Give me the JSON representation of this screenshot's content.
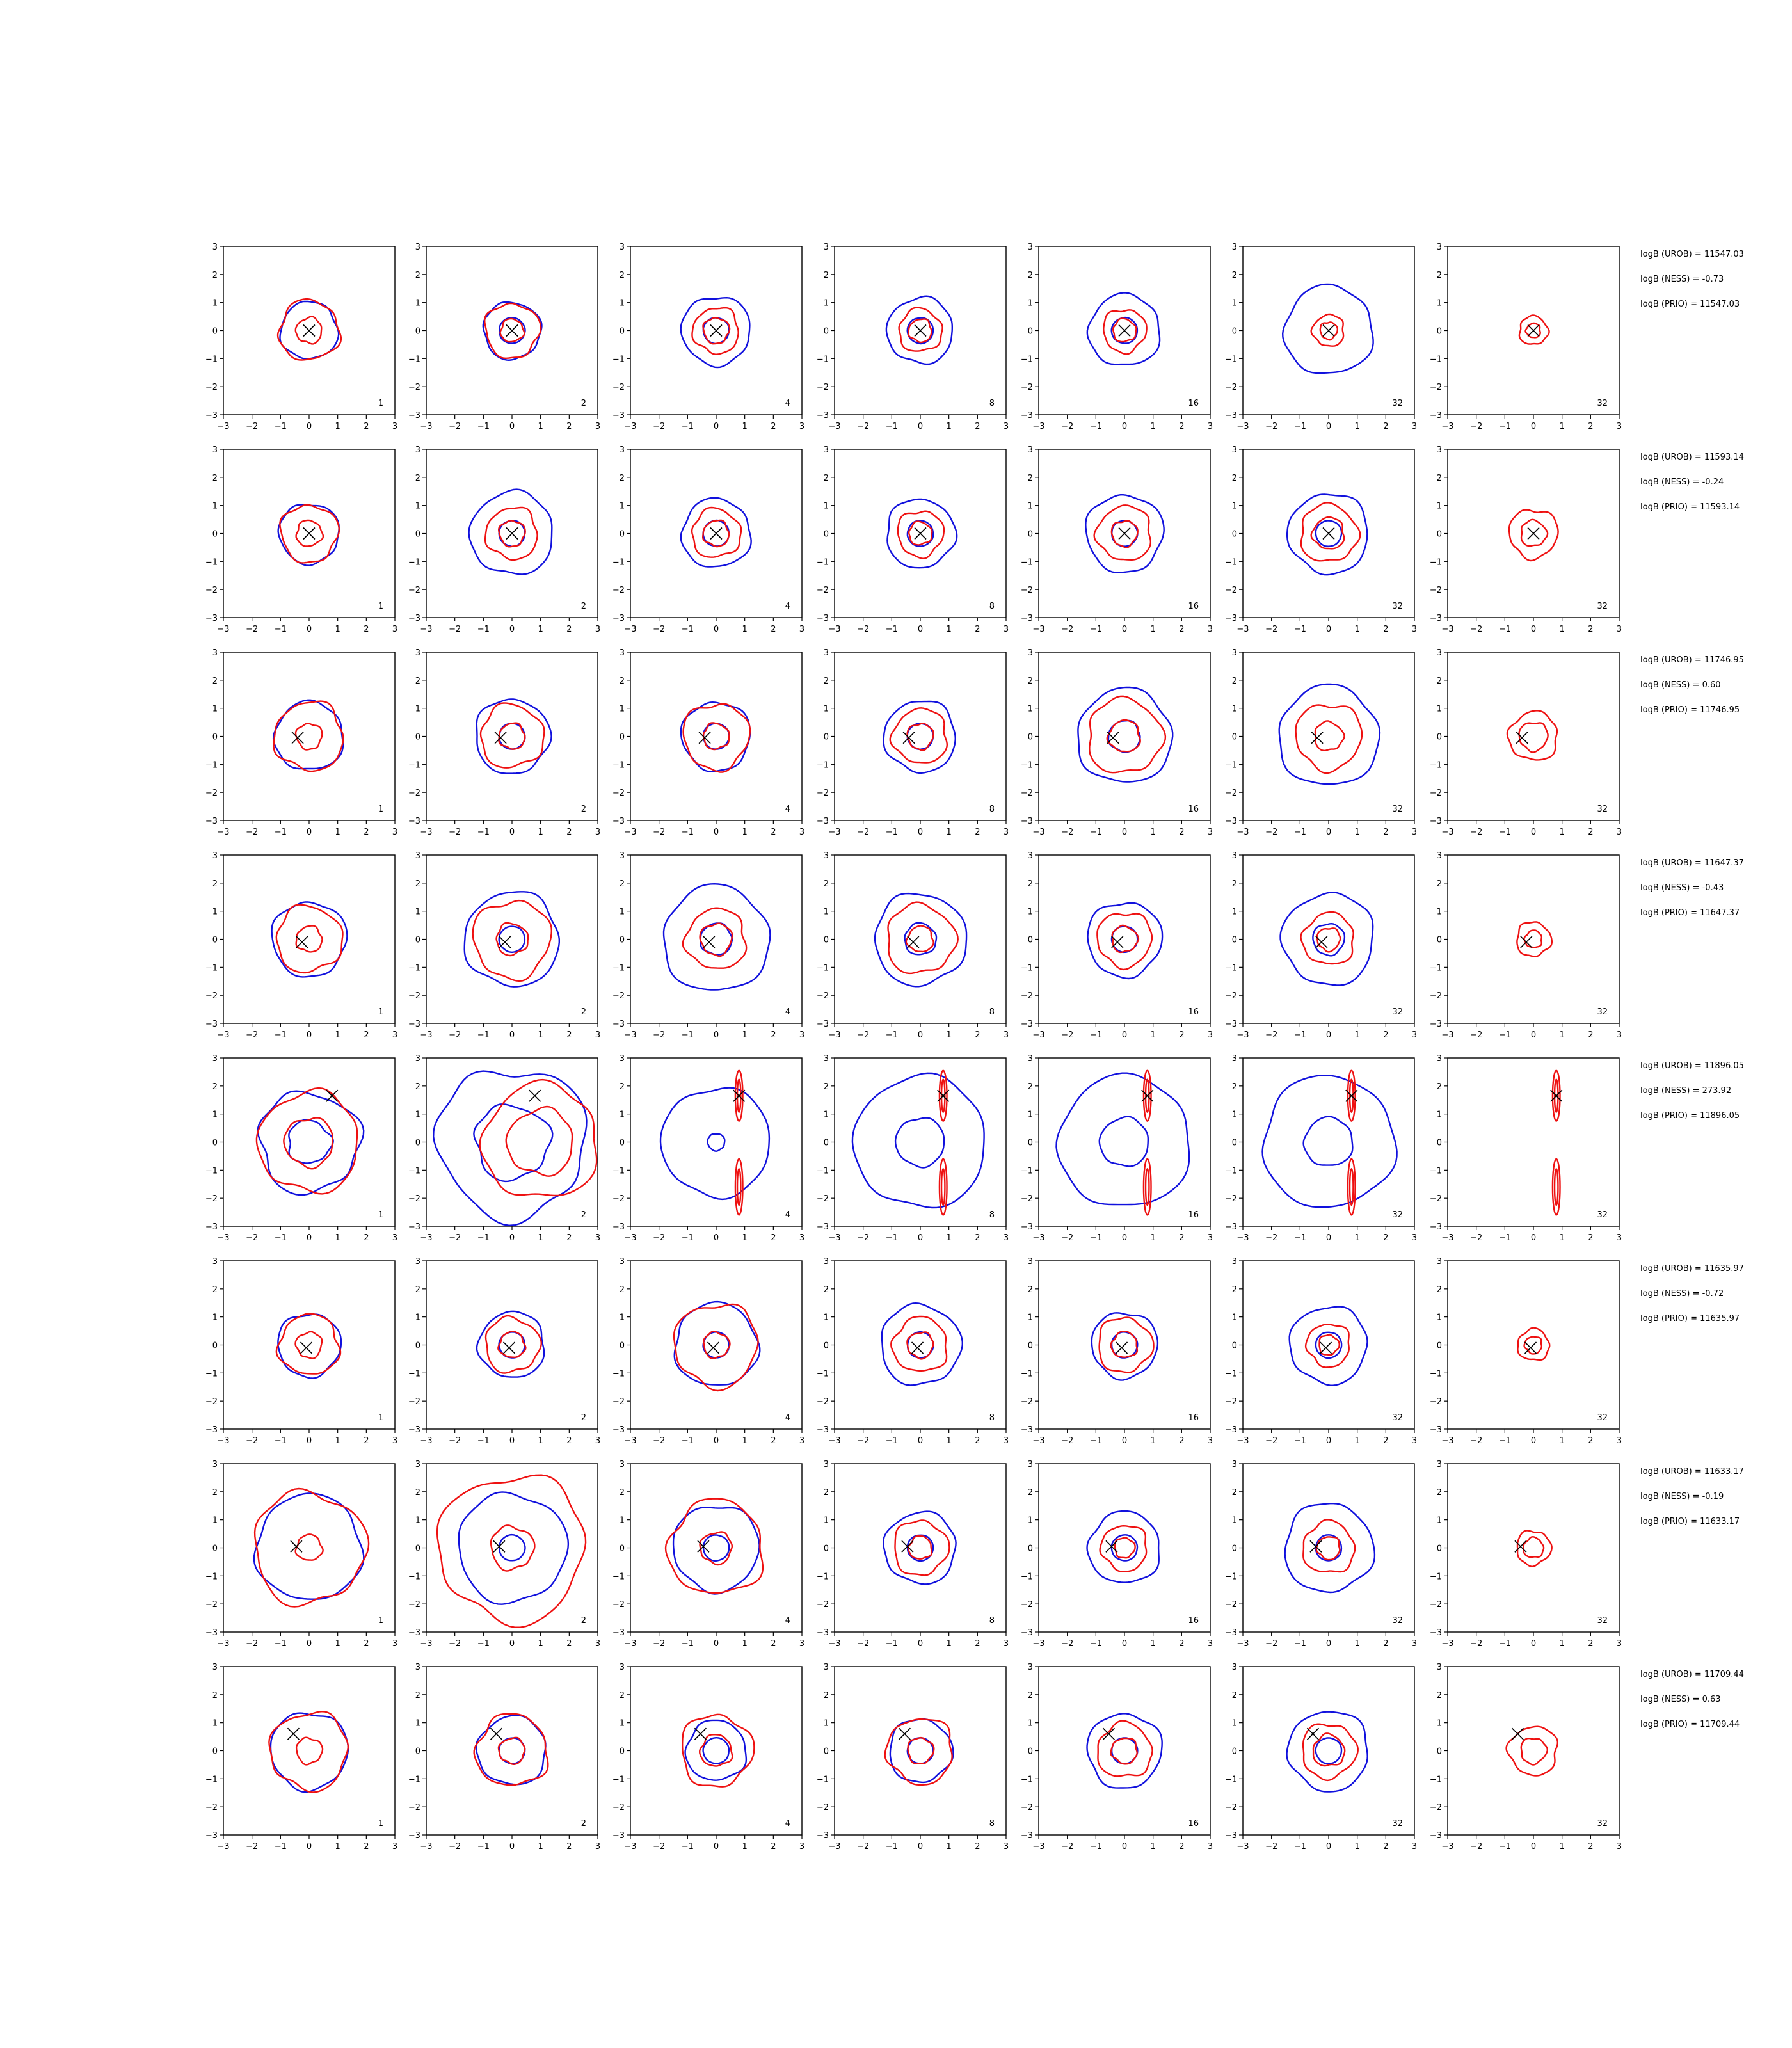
{
  "colors": {
    "red": "#ee1111",
    "blue": "#1111dd",
    "marker": "#000000"
  },
  "chart_data": {
    "type": "contour_grid",
    "rows": 8,
    "cols": 7,
    "xlim": [
      -3,
      3
    ],
    "ylim": [
      -3,
      3
    ],
    "ticks": [
      "−3",
      "−2",
      "−1",
      "0",
      "1",
      "2",
      "3"
    ],
    "panel_labels": [
      "1",
      "2",
      "4",
      "8",
      "16",
      "32",
      "32"
    ],
    "rows_data": [
      {
        "marker": [
          0.0,
          0.0
        ],
        "annotations": [
          "logB (UROB) = 11547.03",
          "logB (NESS) = -0.73",
          "logB (PRIO) = 11547.03"
        ],
        "red": [
          [
            [
              0.45
            ],
            [
              1.05
            ]
          ],
          [
            [
              0.4
            ],
            [
              0.95
            ]
          ],
          [
            [
              0.45
            ],
            [
              0.8
            ]
          ],
          [
            [
              0.4
            ],
            [
              0.75
            ]
          ],
          [
            [
              0.4
            ],
            [
              0.75
            ]
          ],
          [
            [
              0.3
            ],
            [
              0.55
            ]
          ],
          [
            [
              0.25
            ],
            [
              0.5
            ]
          ]
        ],
        "blue": [
          [
            [
              1.0
            ]
          ],
          [
            [
              0.45
            ],
            [
              1.0
            ]
          ],
          [
            [
              0.45
            ],
            [
              1.2
            ]
          ],
          [
            [
              0.45
            ],
            [
              1.15
            ]
          ],
          [
            [
              0.45
            ],
            [
              1.25
            ]
          ],
          [
            [
              1.55
            ]
          ],
          []
        ]
      },
      {
        "marker": [
          0.0,
          0.0
        ],
        "annotations": [
          "logB (UROB) = 11593.14",
          "logB (NESS) = -0.24",
          "logB (PRIO) = 11593.14"
        ],
        "red": [
          [
            [
              0.45
            ],
            [
              1.0
            ]
          ],
          [
            [
              0.45
            ],
            [
              0.9
            ]
          ],
          [
            [
              0.45
            ],
            [
              0.85
            ]
          ],
          [
            [
              0.4
            ],
            [
              0.8
            ]
          ],
          [
            [
              0.45
            ],
            [
              0.95
            ]
          ],
          [
            [
              0.55
            ],
            [
              1.0
            ]
          ],
          [
            [
              0.45
            ],
            [
              0.85
            ]
          ]
        ],
        "blue": [
          [
            [
              1.05
            ]
          ],
          [
            [
              0.45
            ],
            [
              1.45
            ]
          ],
          [
            [
              0.45
            ],
            [
              1.2
            ]
          ],
          [
            [
              0.45
            ],
            [
              1.2
            ]
          ],
          [
            [
              0.45
            ],
            [
              1.35
            ]
          ],
          [
            [
              0.45
            ],
            [
              1.4
            ]
          ],
          []
        ]
      },
      {
        "marker": [
          -0.4,
          -0.05
        ],
        "annotations": [
          "logB (UROB) = 11746.95",
          "logB (NESS) = 0.60",
          "logB (PRIO) = 11746.95"
        ],
        "red": [
          [
            [
              0.45
            ],
            [
              1.2
            ]
          ],
          [
            [
              0.45
            ],
            [
              1.1
            ]
          ],
          [
            [
              0.45
            ],
            [
              1.15
            ]
          ],
          [
            [
              0.45
            ],
            [
              0.95
            ]
          ],
          [
            [
              0.55
            ],
            [
              1.3
            ]
          ],
          [
            [
              0.5
            ],
            [
              1.15
            ]
          ],
          [
            [
              0.5
            ],
            [
              0.85
            ]
          ]
        ],
        "blue": [
          [
            [
              1.2
            ]
          ],
          [
            [
              0.45
            ],
            [
              1.3
            ]
          ],
          [
            [
              0.45
            ],
            [
              1.2
            ]
          ],
          [
            [
              0.45
            ],
            [
              1.25
            ]
          ],
          [
            [
              0.55
            ],
            [
              1.65
            ]
          ],
          [
            [
              1.75
            ]
          ],
          []
        ]
      },
      {
        "marker": [
          -0.25,
          -0.1
        ],
        "annotations": [
          "logB (UROB) = 11647.37",
          "logB (NESS) = -0.43",
          "logB (PRIO) = 11647.37"
        ],
        "red": [
          [
            [
              0.45
            ],
            [
              1.15
            ]
          ],
          [
            [
              0.55
            ],
            [
              1.35
            ]
          ],
          [
            [
              0.55
            ],
            [
              1.05
            ]
          ],
          [
            [
              0.45
            ],
            [
              1.2
            ]
          ],
          [
            [
              0.45
            ],
            [
              0.95
            ]
          ],
          [
            [
              0.4
            ],
            [
              0.9
            ]
          ],
          [
            [
              0.3
            ],
            [
              0.6
            ]
          ]
        ],
        "blue": [
          [
            [
              1.3
            ]
          ],
          [
            [
              0.45
            ],
            [
              1.65
            ]
          ],
          [
            [
              0.55
            ],
            [
              1.85
            ]
          ],
          [
            [
              0.55
            ],
            [
              1.6
            ]
          ],
          [
            [
              0.45
            ],
            [
              1.3
            ]
          ],
          [
            [
              0.55
            ],
            [
              1.6
            ]
          ],
          []
        ]
      },
      {
        "marker": [
          0.8,
          1.65
        ],
        "annotations": [
          "logB (UROB) = 11896.05",
          "logB (NESS) = 273.92",
          "logB (PRIO) = 11896.05"
        ],
        "red": [
          [
            [
              0.85
            ],
            [
              1.75
            ]
          ],
          [
            [
              1.15
            ],
            [
              2.0
            ]
          ],
          [
            [
              0.85
            ]
          ],
          [
            [
              0.85
            ]
          ],
          [
            [
              0.85
            ]
          ],
          [
            [
              0.85
            ]
          ],
          [
            [
              0.85
            ]
          ]
        ],
        "blue": [
          [
            [
              0.75
            ],
            [
              1.75
            ]
          ],
          [
            [
              1.3
            ],
            [
              2.6
            ]
          ],
          [
            [
              0.3
            ],
            [
              1.9
            ]
          ],
          [
            [
              0.85
            ],
            [
              2.3
            ]
          ],
          [
            [
              0.85
            ],
            [
              2.3
            ]
          ],
          [
            [
              0.85
            ],
            [
              2.3
            ]
          ],
          []
        ]
      },
      {
        "marker": [
          -0.1,
          -0.1
        ],
        "annotations": [
          "logB (UROB) = 11635.97",
          "logB (NESS) = -0.72",
          "logB (PRIO) = 11635.97"
        ],
        "red": [
          [
            [
              0.45
            ],
            [
              1.05
            ]
          ],
          [
            [
              0.45
            ],
            [
              0.95
            ]
          ],
          [
            [
              0.45
            ],
            [
              1.45
            ]
          ],
          [
            [
              0.45
            ],
            [
              0.95
            ]
          ],
          [
            [
              0.45
            ],
            [
              0.95
            ]
          ],
          [
            [
              0.35
            ],
            [
              0.75
            ]
          ],
          [
            [
              0.3
            ],
            [
              0.55
            ]
          ]
        ],
        "blue": [
          [
            [
              1.1
            ]
          ],
          [
            [
              0.45
            ],
            [
              1.15
            ]
          ],
          [
            [
              0.45
            ],
            [
              1.45
            ]
          ],
          [
            [
              0.45
            ],
            [
              1.4
            ]
          ],
          [
            [
              0.45
            ],
            [
              1.15
            ]
          ],
          [
            [
              0.45
            ],
            [
              1.35
            ]
          ],
          []
        ]
      },
      {
        "marker": [
          -0.45,
          0.05
        ],
        "annotations": [
          "logB (UROB) = 11633.17",
          "logB (NESS) = -0.19",
          "logB (PRIO) = 11633.17"
        ],
        "red": [
          [
            [
              0.45
            ],
            [
              1.95
            ]
          ],
          [
            [
              0.75
            ],
            [
              2.55
            ]
          ],
          [
            [
              0.55
            ],
            [
              1.65
            ]
          ],
          [
            [
              0.4
            ],
            [
              0.95
            ]
          ],
          [
            [
              0.35
            ],
            [
              0.8
            ]
          ],
          [
            [
              0.4
            ],
            [
              0.9
            ]
          ],
          [
            [
              0.35
            ],
            [
              0.6
            ]
          ]
        ],
        "blue": [
          [
            [
              1.85
            ]
          ],
          [
            [
              0.45
            ],
            [
              1.9
            ]
          ],
          [
            [
              0.45
            ],
            [
              1.5
            ]
          ],
          [
            [
              0.45
            ],
            [
              1.25
            ]
          ],
          [
            [
              0.45
            ],
            [
              1.25
            ]
          ],
          [
            [
              0.45
            ],
            [
              1.55
            ]
          ],
          []
        ]
      },
      {
        "marker": [
          -0.55,
          0.6
        ],
        "annotations": [
          "logB (UROB) = 11709.44",
          "logB (NESS) = 0.63",
          "logB (PRIO) = 11709.44"
        ],
        "red": [
          [
            [
              0.45
            ],
            [
              1.35
            ]
          ],
          [
            [
              0.45
            ],
            [
              1.25
            ]
          ],
          [
            [
              0.55
            ],
            [
              1.25
            ]
          ],
          [
            [
              0.45
            ],
            [
              1.15
            ]
          ],
          [
            [
              0.45
            ],
            [
              0.95
            ]
          ],
          [
            [
              0.55
            ],
            [
              0.95
            ]
          ],
          [
            [
              0.45
            ],
            [
              0.85
            ]
          ]
        ],
        "blue": [
          [
            [
              1.35
            ]
          ],
          [
            [
              0.45
            ],
            [
              1.2
            ]
          ],
          [
            [
              0.45
            ],
            [
              1.05
            ]
          ],
          [
            [
              0.45
            ],
            [
              1.1
            ]
          ],
          [
            [
              0.45
            ],
            [
              1.3
            ]
          ],
          [
            [
              0.45
            ],
            [
              1.4
            ]
          ],
          []
        ]
      }
    ]
  }
}
